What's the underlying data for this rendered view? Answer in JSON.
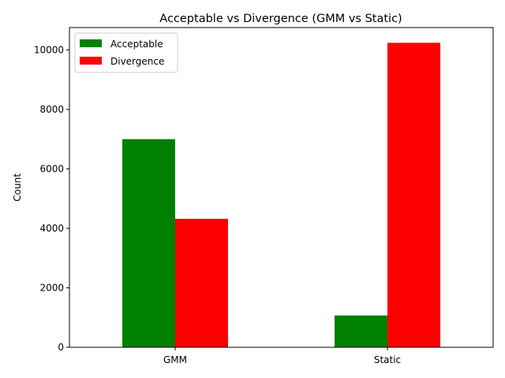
{
  "chart_data": {
    "type": "bar",
    "title": "Acceptable vs Divergence (GMM vs Static)",
    "xlabel": "",
    "ylabel": "Count",
    "categories": [
      "GMM",
      "Static"
    ],
    "series": [
      {
        "name": "Acceptable",
        "values": [
          7000,
          1070
        ],
        "color": "#008000"
      },
      {
        "name": "Divergence",
        "values": [
          4320,
          10240
        ],
        "color": "#ff0000"
      }
    ],
    "ylim": [
      0,
      10752
    ],
    "yticks": [
      0,
      2000,
      4000,
      6000,
      8000,
      10000
    ],
    "grid": false,
    "legend_position": "upper-left"
  }
}
